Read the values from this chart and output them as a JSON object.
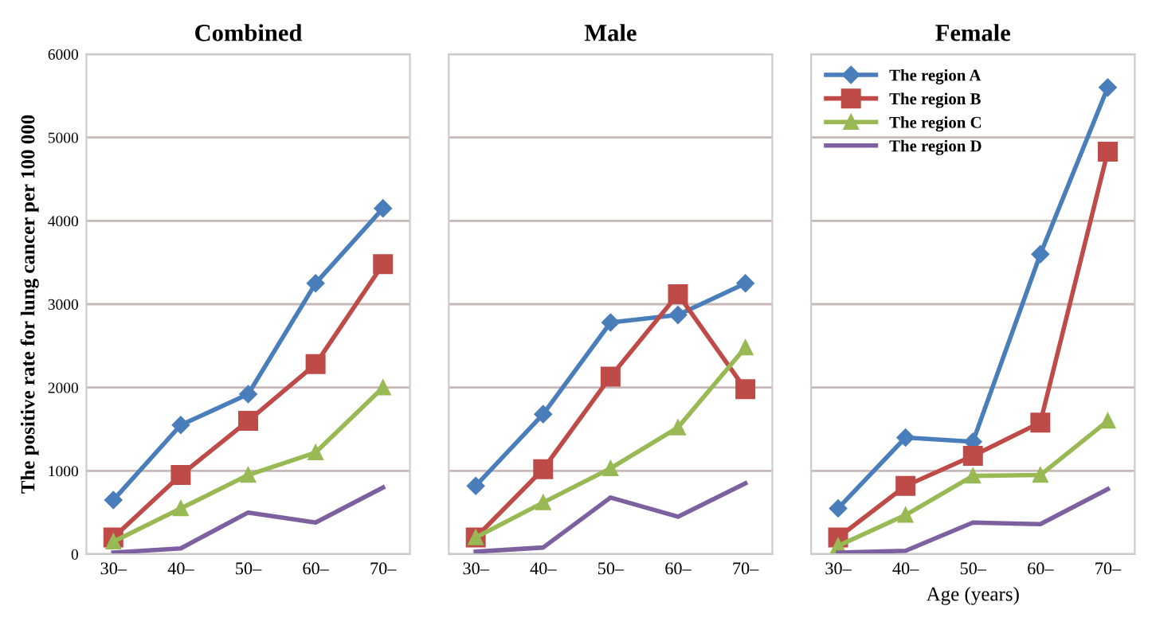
{
  "chart_data": [
    {
      "type": "line",
      "title": "Combined",
      "ylabel": "The positive rate for lung cancer per 100 000",
      "categories": [
        "30–",
        "40–",
        "50–",
        "60–",
        "70–"
      ],
      "ylim": [
        0,
        6000
      ],
      "yticks": [
        0,
        1000,
        2000,
        3000,
        4000,
        5000,
        6000
      ],
      "grid": "y",
      "legend": false,
      "series": [
        {
          "color": "#4a7ebb",
          "marker": "diamond",
          "values": [
            650,
            1550,
            1920,
            3250,
            4150
          ]
        },
        {
          "color": "#be4b48",
          "marker": "square",
          "values": [
            200,
            950,
            1600,
            2280,
            3480
          ]
        },
        {
          "color": "#98b954",
          "marker": "triangle",
          "values": [
            150,
            550,
            950,
            1220,
            2000
          ]
        },
        {
          "color": "#7d60a0",
          "marker": "none",
          "values": [
            20,
            70,
            500,
            380,
            800
          ]
        }
      ]
    },
    {
      "type": "line",
      "title": "Male",
      "categories": [
        "30–",
        "40–",
        "50–",
        "60–",
        "70–"
      ],
      "ylim": [
        0,
        6000
      ],
      "tick_labels": "x",
      "grid": "y",
      "legend": false,
      "series": [
        {
          "color": "#4a7ebb",
          "marker": "diamond",
          "values": [
            820,
            1680,
            2780,
            2870,
            3250
          ]
        },
        {
          "color": "#be4b48",
          "marker": "square",
          "values": [
            200,
            1020,
            2130,
            3120,
            1980
          ]
        },
        {
          "color": "#98b954",
          "marker": "triangle",
          "values": [
            200,
            620,
            1030,
            1520,
            2480
          ]
        },
        {
          "color": "#7d60a0",
          "marker": "none",
          "values": [
            30,
            80,
            680,
            450,
            850
          ]
        }
      ]
    },
    {
      "type": "line",
      "title": "Female",
      "xlabel": "Age (years)",
      "categories": [
        "30–",
        "40–",
        "50–",
        "60–",
        "70–"
      ],
      "ylim": [
        0,
        6000
      ],
      "tick_labels": "x",
      "grid": "y",
      "legend": "top left",
      "series": [
        {
          "name": "The region A",
          "color": "#4a7ebb",
          "marker": "diamond",
          "values": [
            550,
            1400,
            1350,
            3600,
            5600
          ]
        },
        {
          "name": "The region B",
          "color": "#be4b48",
          "marker": "square",
          "values": [
            200,
            820,
            1180,
            1580,
            4830
          ]
        },
        {
          "name": "The region C",
          "color": "#98b954",
          "marker": "triangle",
          "values": [
            100,
            470,
            940,
            950,
            1600
          ]
        },
        {
          "name": "The region D",
          "color": "#7d60a0",
          "marker": "none",
          "values": [
            20,
            40,
            380,
            360,
            780
          ]
        }
      ]
    }
  ]
}
